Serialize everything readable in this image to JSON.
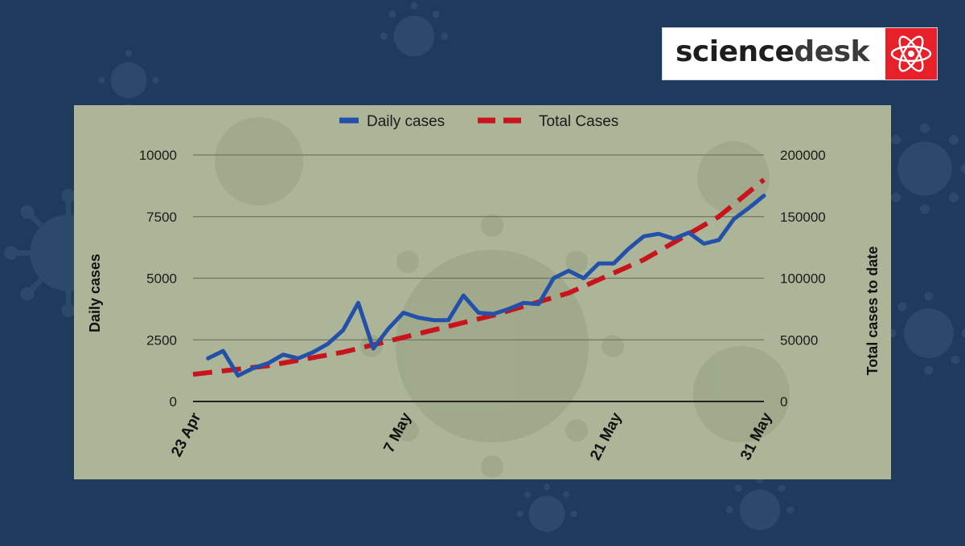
{
  "brand": {
    "name_part1": "science",
    "name_part2": "desk",
    "logo_icon": "atom-icon",
    "logo_color": "#e8202a"
  },
  "colors": {
    "background": "#1e3a5c",
    "panel": "#adb598",
    "daily_line": "#2350a8",
    "total_line": "#c8141c"
  },
  "chart_data": {
    "type": "line",
    "title": "",
    "legend": [
      "Daily cases",
      "Total Cases"
    ],
    "legend_position": "top",
    "ylabel": "Daily cases",
    "y2label": "Total  cases to date",
    "ylim": [
      0,
      10000
    ],
    "y2lim": [
      0,
      200000
    ],
    "yticks": [
      0,
      2500,
      5000,
      7500,
      10000
    ],
    "y2ticks": [
      0,
      50000,
      100000,
      150000,
      200000
    ],
    "xtick_labels": [
      {
        "label": "23 Apr",
        "day": 0
      },
      {
        "label": "7 May",
        "day": 14
      },
      {
        "label": "21 May",
        "day": 28
      },
      {
        "label": "31 May",
        "day": 38
      }
    ],
    "x_days": [
      1,
      2,
      3,
      4,
      5,
      6,
      7,
      8,
      9,
      10,
      11,
      12,
      13,
      14,
      15,
      16,
      17,
      18,
      19,
      20,
      21,
      22,
      23,
      24,
      25,
      26,
      27,
      28,
      29,
      30,
      31,
      32,
      33,
      34,
      35,
      36,
      37,
      38
    ],
    "series": [
      {
        "name": "Daily cases",
        "axis": "left",
        "style": "solid",
        "values": [
          1750,
          2050,
          1050,
          1350,
          1550,
          1900,
          1750,
          2000,
          2350,
          2900,
          4000,
          2150,
          2950,
          3600,
          3400,
          3300,
          3300,
          4300,
          3600,
          3550,
          3750,
          4000,
          3950,
          5000,
          5300,
          5000,
          5600,
          5600,
          6200,
          6700,
          6800,
          6600,
          6850,
          6400,
          6550,
          7400,
          7850,
          8350
        ]
      },
      {
        "name": "Total Cases",
        "axis": "right",
        "style": "dashed",
        "x_days": [
          0,
          38
        ],
        "values": [
          22000,
          180000
        ],
        "curve_points": [
          [
            0,
            22000
          ],
          [
            5,
            29000
          ],
          [
            10,
            40000
          ],
          [
            15,
            55000
          ],
          [
            20,
            70000
          ],
          [
            25,
            88000
          ],
          [
            30,
            115000
          ],
          [
            35,
            150000
          ],
          [
            38,
            180000
          ]
        ]
      }
    ]
  }
}
